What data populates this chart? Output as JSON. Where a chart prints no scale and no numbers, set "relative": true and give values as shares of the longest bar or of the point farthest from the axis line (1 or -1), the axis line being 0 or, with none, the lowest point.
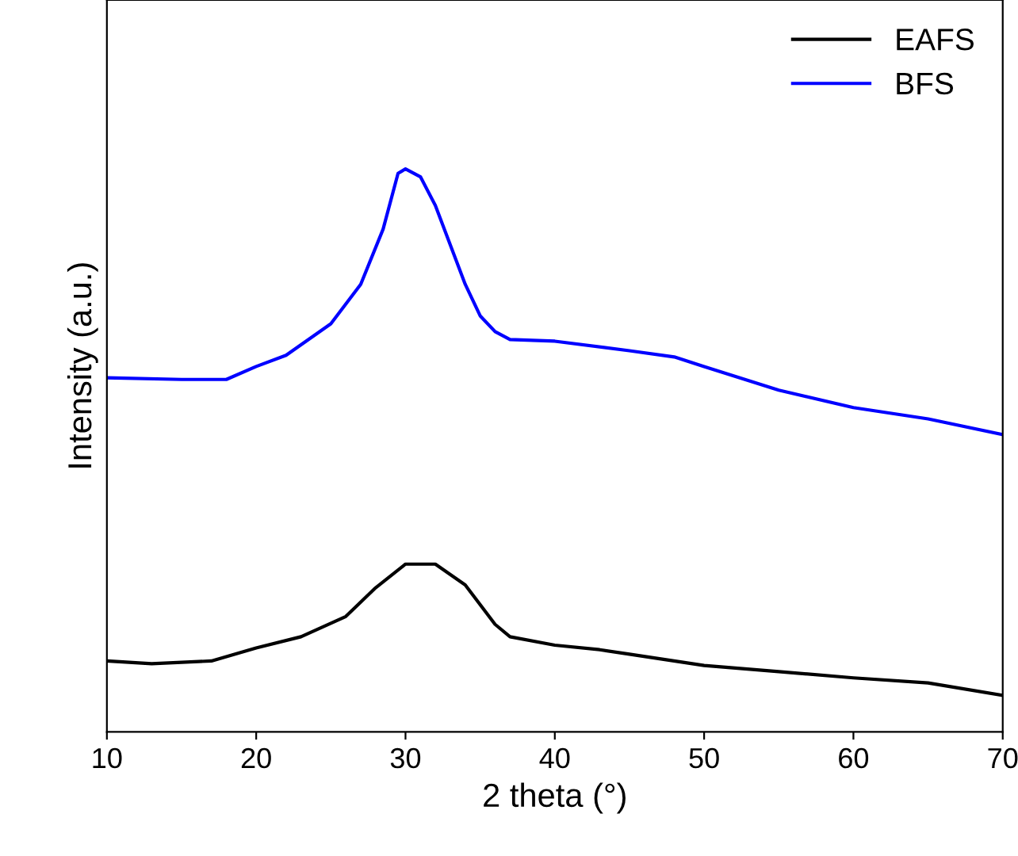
{
  "chart_data": {
    "type": "line",
    "relative": true,
    "xlabel": "2 theta (°)",
    "ylabel": "Intensity (a.u.)",
    "xlim": [
      10,
      70
    ],
    "xticks": [
      10,
      20,
      30,
      40,
      50,
      60,
      70
    ],
    "legend": "top right",
    "grid": false,
    "marker": "none",
    "line_style": "solid",
    "series": [
      {
        "name": "EAFS",
        "color": "#000000",
        "x": [
          10,
          13,
          17,
          20,
          23,
          26,
          28,
          30,
          32,
          34,
          36,
          37,
          40,
          43,
          45,
          50,
          55,
          60,
          65,
          70
        ],
        "values": [
          0.126,
          0.121,
          0.126,
          0.149,
          0.169,
          0.205,
          0.256,
          0.298,
          0.298,
          0.261,
          0.191,
          0.169,
          0.154,
          0.146,
          0.138,
          0.118,
          0.107,
          0.096,
          0.087,
          0.065
        ]
      },
      {
        "name": "BFS",
        "color": "#0000ff",
        "x": [
          10,
          15,
          18,
          20,
          22,
          25,
          27,
          28.5,
          29.5,
          30,
          31,
          32,
          33,
          34,
          35,
          36,
          37,
          40,
          45,
          48,
          50,
          55,
          60,
          65,
          70
        ],
        "values": [
          0.629,
          0.626,
          0.626,
          0.649,
          0.669,
          0.725,
          0.795,
          0.893,
          0.992,
          1.0,
          0.986,
          0.935,
          0.865,
          0.795,
          0.739,
          0.711,
          0.697,
          0.694,
          0.677,
          0.666,
          0.649,
          0.607,
          0.576,
          0.556,
          0.528
        ]
      }
    ]
  }
}
